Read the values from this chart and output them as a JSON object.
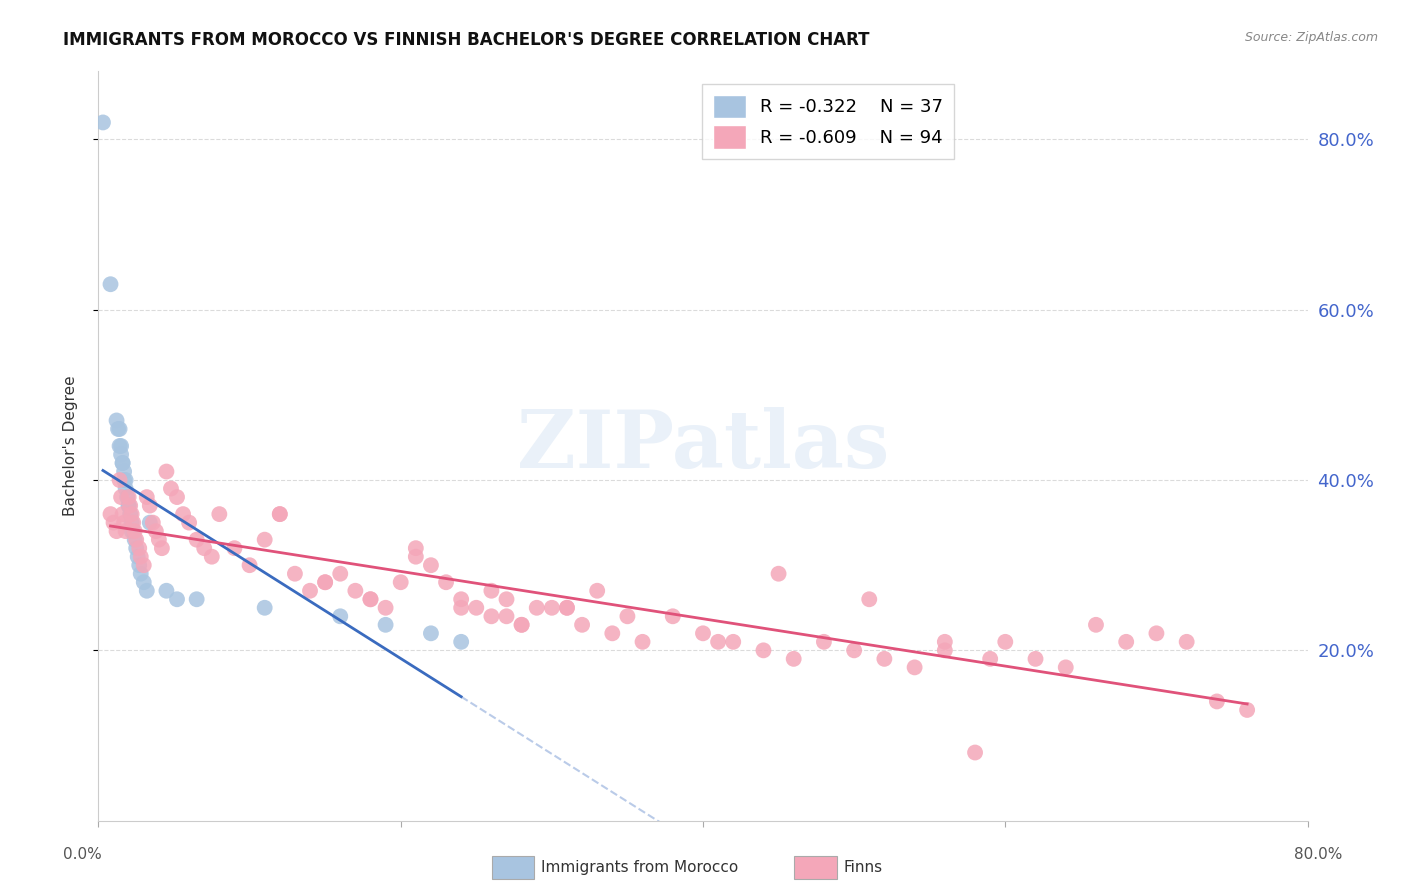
{
  "title": "IMMIGRANTS FROM MOROCCO VS FINNISH BACHELOR'S DEGREE CORRELATION CHART",
  "source": "Source: ZipAtlas.com",
  "ylabel": "Bachelor's Degree",
  "right_yticks": [
    "80.0%",
    "60.0%",
    "40.0%",
    "20.0%"
  ],
  "right_ytick_vals": [
    0.8,
    0.6,
    0.4,
    0.2
  ],
  "xmin": 0.0,
  "xmax": 0.8,
  "ymin": 0.0,
  "ymax": 0.88,
  "watermark": "ZIPatlas",
  "legend_morocco_r": "R = -0.322",
  "legend_morocco_n": "N = 37",
  "legend_finns_r": "R = -0.609",
  "legend_finns_n": "N = 94",
  "morocco_color": "#a8c4e0",
  "finns_color": "#f4a7b9",
  "morocco_line_color": "#3a6bbf",
  "finns_line_color": "#e0527a",
  "grid_color": "#cccccc",
  "background_color": "#ffffff",
  "morocco_x": [
    0.003,
    0.008,
    0.012,
    0.013,
    0.014,
    0.014,
    0.015,
    0.015,
    0.016,
    0.016,
    0.017,
    0.017,
    0.018,
    0.018,
    0.019,
    0.02,
    0.02,
    0.021,
    0.022,
    0.022,
    0.023,
    0.024,
    0.025,
    0.026,
    0.027,
    0.028,
    0.03,
    0.032,
    0.034,
    0.045,
    0.052,
    0.065,
    0.11,
    0.16,
    0.19,
    0.22,
    0.24
  ],
  "morocco_y": [
    0.82,
    0.63,
    0.47,
    0.46,
    0.46,
    0.44,
    0.44,
    0.43,
    0.42,
    0.42,
    0.41,
    0.4,
    0.4,
    0.39,
    0.38,
    0.37,
    0.37,
    0.36,
    0.35,
    0.34,
    0.34,
    0.33,
    0.32,
    0.31,
    0.3,
    0.29,
    0.28,
    0.27,
    0.35,
    0.27,
    0.26,
    0.26,
    0.25,
    0.24,
    0.23,
    0.22,
    0.21
  ],
  "finns_x": [
    0.008,
    0.01,
    0.012,
    0.014,
    0.015,
    0.016,
    0.017,
    0.018,
    0.02,
    0.021,
    0.022,
    0.023,
    0.024,
    0.025,
    0.027,
    0.028,
    0.03,
    0.032,
    0.034,
    0.036,
    0.038,
    0.04,
    0.042,
    0.045,
    0.048,
    0.052,
    0.056,
    0.06,
    0.065,
    0.07,
    0.075,
    0.08,
    0.09,
    0.1,
    0.11,
    0.12,
    0.13,
    0.14,
    0.15,
    0.16,
    0.17,
    0.18,
    0.19,
    0.2,
    0.21,
    0.22,
    0.23,
    0.24,
    0.25,
    0.26,
    0.27,
    0.28,
    0.3,
    0.32,
    0.34,
    0.36,
    0.38,
    0.4,
    0.42,
    0.44,
    0.46,
    0.48,
    0.5,
    0.52,
    0.54,
    0.56,
    0.58,
    0.6,
    0.62,
    0.64,
    0.66,
    0.68,
    0.7,
    0.72,
    0.74,
    0.76,
    0.45,
    0.51,
    0.35,
    0.41,
    0.33,
    0.27,
    0.29,
    0.31,
    0.56,
    0.59,
    0.12,
    0.15,
    0.18,
    0.21,
    0.24,
    0.26,
    0.28,
    0.31
  ],
  "finns_y": [
    0.36,
    0.35,
    0.34,
    0.4,
    0.38,
    0.36,
    0.35,
    0.34,
    0.38,
    0.37,
    0.36,
    0.35,
    0.34,
    0.33,
    0.32,
    0.31,
    0.3,
    0.38,
    0.37,
    0.35,
    0.34,
    0.33,
    0.32,
    0.41,
    0.39,
    0.38,
    0.36,
    0.35,
    0.33,
    0.32,
    0.31,
    0.36,
    0.32,
    0.3,
    0.33,
    0.36,
    0.29,
    0.27,
    0.28,
    0.29,
    0.27,
    0.26,
    0.25,
    0.28,
    0.32,
    0.3,
    0.28,
    0.26,
    0.25,
    0.27,
    0.24,
    0.23,
    0.25,
    0.23,
    0.22,
    0.21,
    0.24,
    0.22,
    0.21,
    0.2,
    0.19,
    0.21,
    0.2,
    0.19,
    0.18,
    0.21,
    0.08,
    0.21,
    0.19,
    0.18,
    0.23,
    0.21,
    0.22,
    0.21,
    0.14,
    0.13,
    0.29,
    0.26,
    0.24,
    0.21,
    0.27,
    0.26,
    0.25,
    0.25,
    0.2,
    0.19,
    0.36,
    0.28,
    0.26,
    0.31,
    0.25,
    0.24,
    0.23,
    0.25
  ]
}
